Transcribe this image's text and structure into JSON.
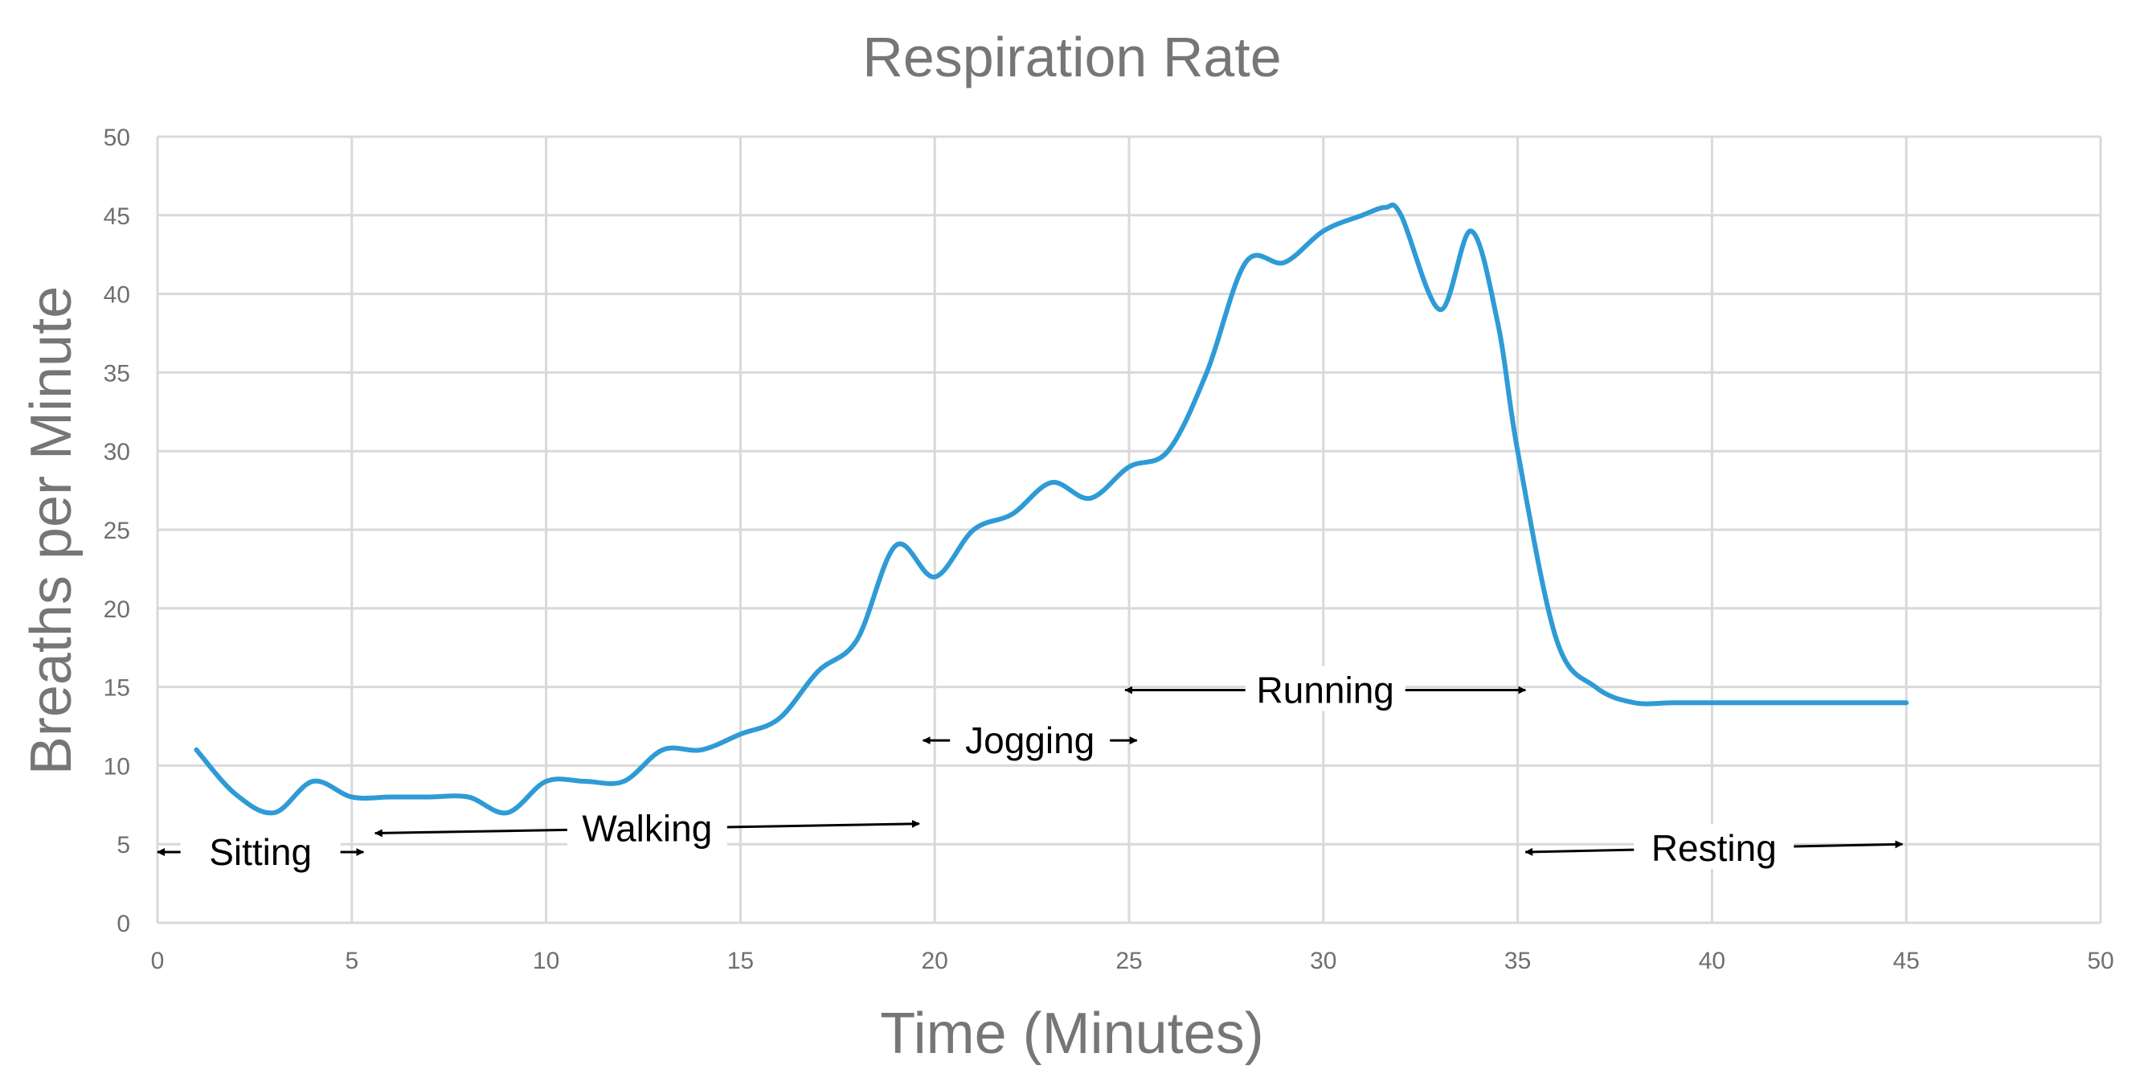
{
  "chart_data": {
    "type": "line",
    "title": "Respiration Rate",
    "xlabel": "Time (Minutes)",
    "ylabel": "Breaths per Minute",
    "xlim": [
      0,
      50
    ],
    "ylim": [
      0,
      50
    ],
    "xticks": [
      0,
      5,
      10,
      15,
      20,
      25,
      30,
      35,
      40,
      45,
      50
    ],
    "yticks": [
      0,
      5,
      10,
      15,
      20,
      25,
      30,
      35,
      40,
      45,
      50
    ],
    "grid": true,
    "series": [
      {
        "name": "Respiration Rate",
        "color": "#2E9BD6",
        "x": [
          1,
          2,
          3,
          4,
          5,
          6,
          7,
          8,
          9,
          10,
          11,
          12,
          13,
          14,
          15,
          16,
          17,
          18,
          19,
          20,
          21,
          22,
          23,
          24,
          25,
          26,
          27,
          28,
          29,
          30,
          31,
          31.6,
          32,
          33,
          33.8,
          34.5,
          35,
          36,
          37,
          38,
          39,
          40,
          41,
          42,
          43,
          44,
          45
        ],
        "y": [
          11,
          8.2,
          7,
          9,
          8,
          8,
          8,
          8,
          7,
          9,
          9,
          9,
          11,
          11,
          12,
          13,
          16,
          18,
          24,
          22,
          25,
          26,
          28,
          27,
          29,
          30,
          35,
          42,
          42,
          44,
          45,
          45.5,
          45,
          39,
          44,
          38,
          30,
          18,
          15,
          14,
          14,
          14,
          14,
          14,
          14,
          14,
          14
        ]
      }
    ],
    "annotations": [
      {
        "label": "Sitting",
        "x_from": 0,
        "x_to": 5.3,
        "y": 4.5
      },
      {
        "label": "Walking",
        "x_from": 5.6,
        "x_to": 19.6,
        "y_from": 5.7,
        "y_to": 6.3
      },
      {
        "label": "Jogging",
        "x_from": 19.7,
        "x_to": 25.2,
        "y": 11.6
      },
      {
        "label": "Running",
        "x_from": 24.9,
        "x_to": 35.2,
        "y": 14.8
      },
      {
        "label": "Resting",
        "x_from": 35.2,
        "x_to": 44.9,
        "y_from": 4.5,
        "y_to": 5.0
      }
    ]
  }
}
